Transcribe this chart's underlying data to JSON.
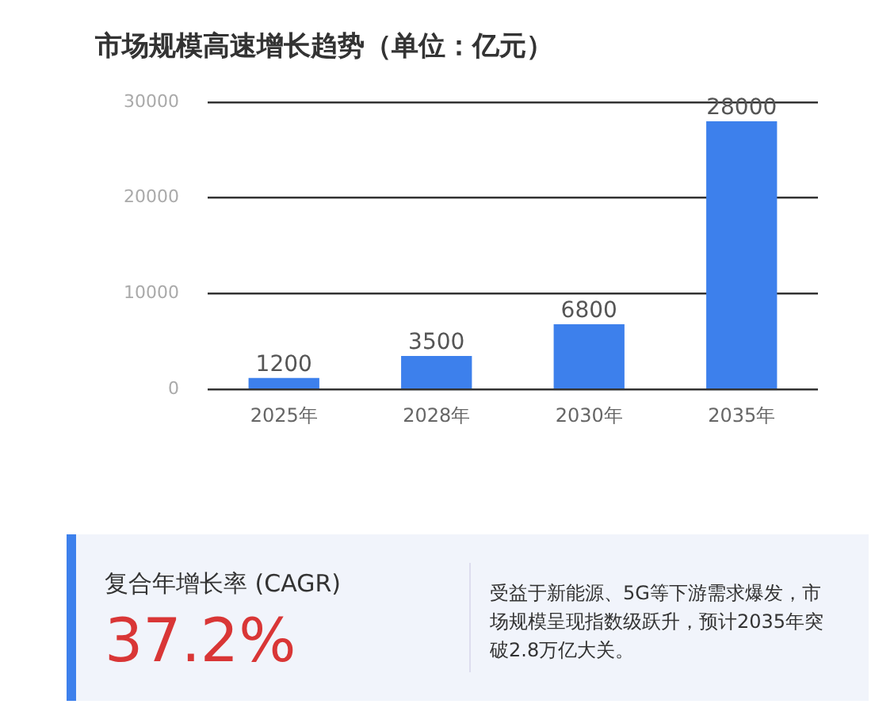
{
  "chart_data": {
    "type": "bar",
    "title": "市场规模高速增长趋势（单位：亿元）",
    "categories": [
      "2025年",
      "2028年",
      "2030年",
      "2035年"
    ],
    "values": [
      1200,
      3500,
      6800,
      28000
    ],
    "color": "#3d80ec",
    "ylim": [
      0,
      30000
    ],
    "yticks": [
      0,
      10000,
      20000,
      30000
    ],
    "grid": "y",
    "data_labels": true,
    "annotations": [
      "复合年增长率 (CAGR)",
      "37.2%",
      "受益于新能源、5G等下游需求爆发，市场规模呈现指数级跃升，预计2035年突破2.8万亿大关。"
    ]
  }
}
